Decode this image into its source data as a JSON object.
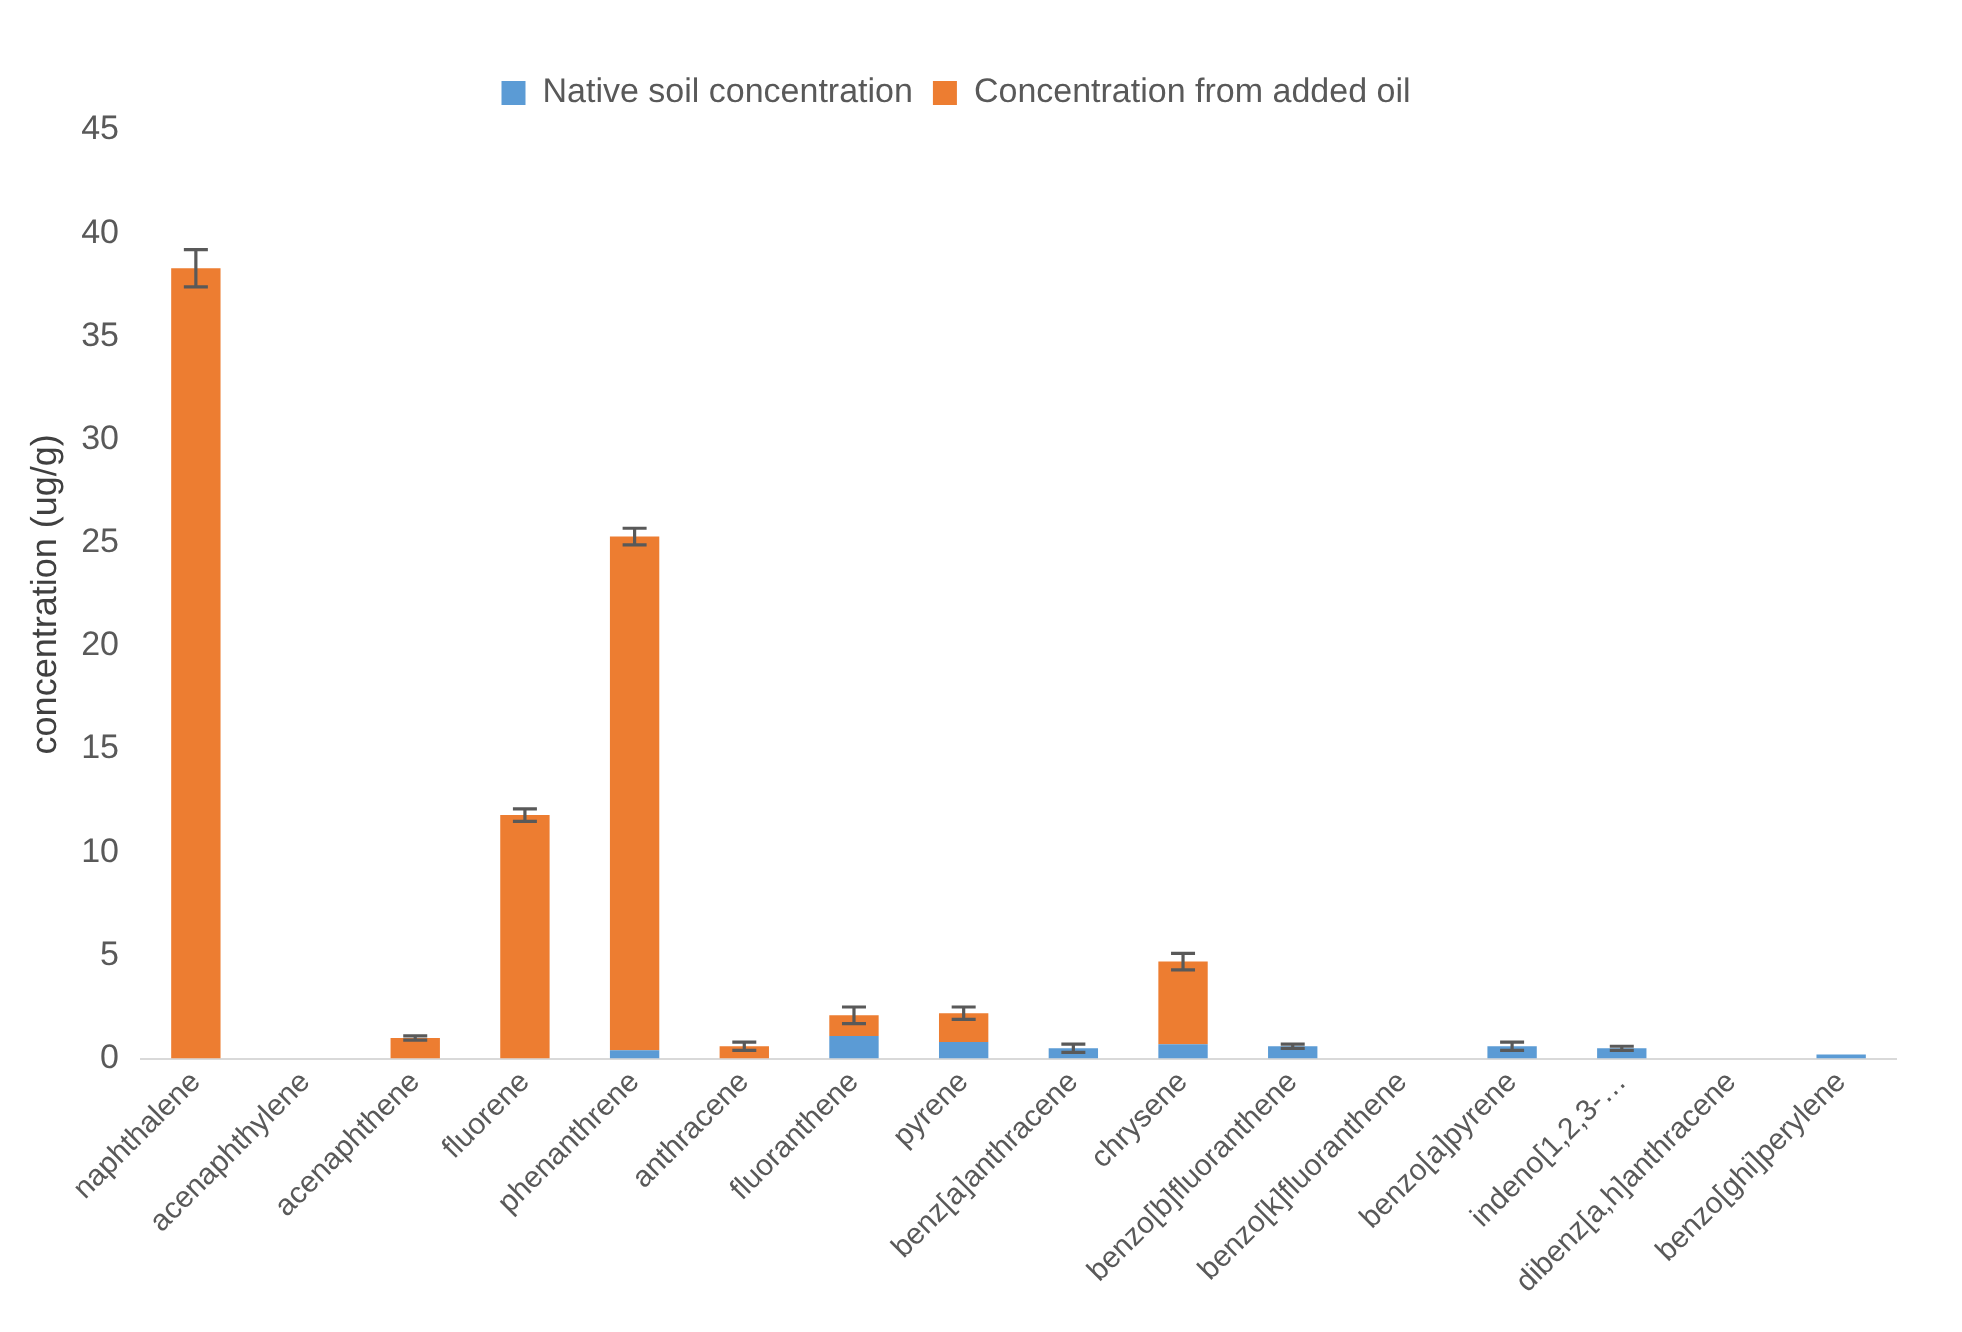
{
  "chart_data": {
    "type": "bar",
    "stacked": true,
    "ylabel": "concentration (ug/g)",
    "legend": "top",
    "grid": false,
    "categories": [
      "naphthalene",
      "acenaphthylene",
      "acenaphthene",
      "fluorene",
      "phenanthrene",
      "anthracene",
      "fluoranthene",
      "pyrene",
      "benz[a]anthracene",
      "chrysene",
      "benzo[b]fluoranthene",
      "benzo[k]fluoranthene",
      "benzo[a]pyrene",
      "indeno[1,2,3-…",
      "dibenz[a,h]anthracene",
      "benzo[ghi]perylene"
    ],
    "ylim": [
      0,
      45
    ],
    "yticks": [
      0,
      5,
      10,
      15,
      20,
      25,
      30,
      35,
      40,
      45
    ],
    "series": [
      {
        "name": "Native soil concentration",
        "color": "#5b9bd5",
        "values": [
          0,
          0,
          0,
          0,
          0.4,
          0,
          1.1,
          0.8,
          0.5,
          0.7,
          0.6,
          null,
          0.6,
          0.5,
          null,
          0.2
        ],
        "errors": [
          null,
          null,
          null,
          null,
          null,
          null,
          null,
          null,
          0.2,
          null,
          0.1,
          null,
          0.2,
          0.1,
          null,
          null
        ]
      },
      {
        "name": "Concentration from added oil",
        "color": "#ed7d31",
        "values": [
          38.3,
          null,
          1,
          11.8,
          24.9,
          0.6,
          1,
          1.4,
          0,
          4,
          0,
          0,
          0,
          0,
          0,
          0
        ],
        "errors": [
          0.9,
          null,
          0.1,
          0.3,
          0.4,
          0.2,
          0.4,
          0.3,
          null,
          0.4,
          null,
          null,
          null,
          null,
          null,
          null
        ]
      }
    ]
  }
}
